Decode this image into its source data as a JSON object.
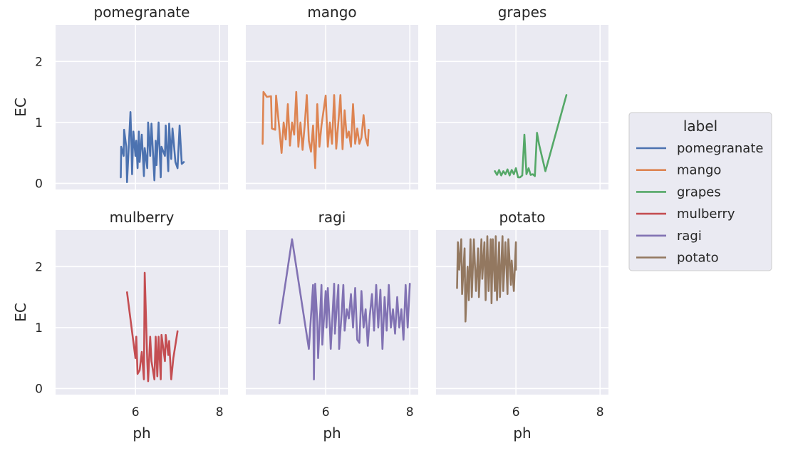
{
  "chart_data": {
    "type": "line",
    "layout": "facet-grid",
    "xlabel": "ph",
    "ylabel": "EC",
    "xlim": [
      4.1,
      8.2
    ],
    "ylim": [
      -0.1,
      2.6
    ],
    "xticks": [
      6,
      8
    ],
    "yticks": [
      0,
      1,
      2
    ],
    "grid": true,
    "legend": {
      "title": "label",
      "position": "right",
      "entries": [
        "pomegranate",
        "mango",
        "grapes",
        "mulberry",
        "ragi",
        "potato"
      ]
    },
    "panels": [
      {
        "title": "pomegranate",
        "color": "#4c72b0",
        "x": [
          5.65,
          5.66,
          5.72,
          5.73,
          5.78,
          5.8,
          5.88,
          5.9,
          5.92,
          5.95,
          6.0,
          6.02,
          6.05,
          6.08,
          6.1,
          6.15,
          6.2,
          6.22,
          6.28,
          6.3,
          6.35,
          6.38,
          6.45,
          6.48,
          6.5,
          6.55,
          6.6,
          6.62,
          6.7,
          6.72,
          6.78,
          6.8,
          6.85,
          6.88,
          6.9,
          6.95,
          7.0,
          7.05,
          7.1,
          7.15
        ],
        "y": [
          0.1,
          0.6,
          0.45,
          0.88,
          0.6,
          0.02,
          1.17,
          0.75,
          0.15,
          0.85,
          0.45,
          0.7,
          0.25,
          0.85,
          0.35,
          0.8,
          0.12,
          0.58,
          0.25,
          1.0,
          0.45,
          0.98,
          0.05,
          0.7,
          0.3,
          1.0,
          0.1,
          0.6,
          0.45,
          0.95,
          0.2,
          0.98,
          0.4,
          0.9,
          0.75,
          0.35,
          0.25,
          0.95,
          0.32,
          0.35
        ]
      },
      {
        "title": "mango",
        "color": "#dd8452",
        "x": [
          4.5,
          4.52,
          4.6,
          4.7,
          4.72,
          4.8,
          4.82,
          4.9,
          4.95,
          5.0,
          5.05,
          5.1,
          5.15,
          5.2,
          5.25,
          5.3,
          5.35,
          5.4,
          5.45,
          5.5,
          5.55,
          5.6,
          5.65,
          5.7,
          5.75,
          5.8,
          5.85,
          5.9,
          5.95,
          6.0,
          6.05,
          6.1,
          6.15,
          6.2,
          6.25,
          6.3,
          6.35,
          6.4,
          6.45,
          6.5,
          6.55,
          6.6,
          6.65,
          6.7,
          6.75,
          6.8,
          6.85,
          6.9,
          6.95,
          7.0,
          7.02
        ],
        "y": [
          0.65,
          1.5,
          1.42,
          1.43,
          0.9,
          0.88,
          1.44,
          0.88,
          0.5,
          1.0,
          0.72,
          1.3,
          0.62,
          1.0,
          0.8,
          1.5,
          0.6,
          1.0,
          0.55,
          0.95,
          1.45,
          0.7,
          0.52,
          0.95,
          0.25,
          1.3,
          0.6,
          0.95,
          1.2,
          1.44,
          0.6,
          1.0,
          0.65,
          1.45,
          0.57,
          1.0,
          1.45,
          0.56,
          1.2,
          0.75,
          0.85,
          0.6,
          1.3,
          0.65,
          0.9,
          0.65,
          0.75,
          1.12,
          0.75,
          0.62,
          0.88
        ]
      },
      {
        "title": "grapes",
        "color": "#55a868",
        "x": [
          5.5,
          5.55,
          5.6,
          5.65,
          5.7,
          5.75,
          5.8,
          5.85,
          5.9,
          5.95,
          6.0,
          6.05,
          6.1,
          6.15,
          6.2,
          6.25,
          6.3,
          6.35,
          6.4,
          6.45,
          6.5,
          6.55,
          6.7,
          7.2
        ],
        "y": [
          0.2,
          0.14,
          0.22,
          0.13,
          0.2,
          0.15,
          0.23,
          0.13,
          0.22,
          0.15,
          0.25,
          0.1,
          0.1,
          0.13,
          0.8,
          0.15,
          0.25,
          0.14,
          0.15,
          0.12,
          0.83,
          0.64,
          0.2,
          1.45
        ]
      },
      {
        "title": "mulberry",
        "color": "#c44e52",
        "x": [
          5.8,
          6.0,
          6.02,
          6.05,
          6.1,
          6.15,
          6.2,
          6.22,
          6.28,
          6.3,
          6.35,
          6.38,
          6.45,
          6.48,
          6.52,
          6.55,
          6.6,
          6.62,
          6.7,
          6.72,
          6.78,
          6.8,
          6.85,
          6.9,
          7.0
        ],
        "y": [
          1.58,
          0.5,
          0.85,
          0.24,
          0.3,
          0.6,
          0.15,
          1.9,
          0.45,
          0.12,
          0.85,
          0.45,
          0.15,
          0.85,
          0.2,
          0.85,
          0.15,
          0.88,
          0.45,
          0.88,
          0.55,
          0.78,
          0.15,
          0.5,
          0.94
        ]
      },
      {
        "title": "ragi",
        "color": "#8172b3",
        "x": [
          4.9,
          5.2,
          5.6,
          5.7,
          5.72,
          5.75,
          5.8,
          5.82,
          5.9,
          5.92,
          6.0,
          6.02,
          6.05,
          6.1,
          6.12,
          6.2,
          6.22,
          6.3,
          6.32,
          6.38,
          6.42,
          6.45,
          6.5,
          6.55,
          6.6,
          6.65,
          6.7,
          6.75,
          6.8,
          6.85,
          6.9,
          6.95,
          7.0,
          7.05,
          7.1,
          7.15,
          7.2,
          7.25,
          7.3,
          7.35,
          7.4,
          7.45,
          7.5,
          7.55,
          7.6,
          7.65,
          7.7,
          7.75,
          7.8,
          7.85,
          7.9,
          7.95,
          8.0
        ],
        "y": [
          1.07,
          2.45,
          0.65,
          1.7,
          0.15,
          1.72,
          1.1,
          0.5,
          1.7,
          0.72,
          1.6,
          1.0,
          1.65,
          1.0,
          0.65,
          1.72,
          0.9,
          1.7,
          0.65,
          1.25,
          1.7,
          0.95,
          1.3,
          1.15,
          1.55,
          1.0,
          1.65,
          0.8,
          0.75,
          1.6,
          1.0,
          1.3,
          0.7,
          1.2,
          1.55,
          0.95,
          1.7,
          1.0,
          1.62,
          0.65,
          1.5,
          0.95,
          1.7,
          1.0,
          1.3,
          0.9,
          1.5,
          1.0,
          1.3,
          0.8,
          1.7,
          1.0,
          1.72
        ]
      },
      {
        "title": "potato",
        "color": "#937860",
        "x": [
          4.6,
          4.62,
          4.65,
          4.7,
          4.72,
          4.78,
          4.8,
          4.85,
          4.88,
          4.92,
          4.95,
          5.0,
          5.05,
          5.1,
          5.12,
          5.18,
          5.2,
          5.25,
          5.28,
          5.32,
          5.35,
          5.4,
          5.42,
          5.45,
          5.5,
          5.52,
          5.55,
          5.6,
          5.62,
          5.68,
          5.7,
          5.75,
          5.8,
          5.82,
          5.88,
          5.9,
          5.95,
          6.0,
          6.0
        ],
        "y": [
          1.65,
          2.4,
          1.95,
          2.45,
          1.55,
          2.3,
          1.1,
          2.0,
          1.45,
          2.45,
          1.5,
          2.45,
          1.6,
          2.3,
          1.5,
          2.45,
          1.8,
          2.4,
          1.45,
          2.5,
          1.6,
          2.45,
          1.4,
          2.45,
          1.6,
          2.5,
          1.45,
          2.4,
          1.5,
          2.5,
          1.6,
          2.4,
          1.55,
          2.45,
          1.7,
          2.1,
          1.6,
          2.4,
          1.95
        ]
      }
    ]
  }
}
